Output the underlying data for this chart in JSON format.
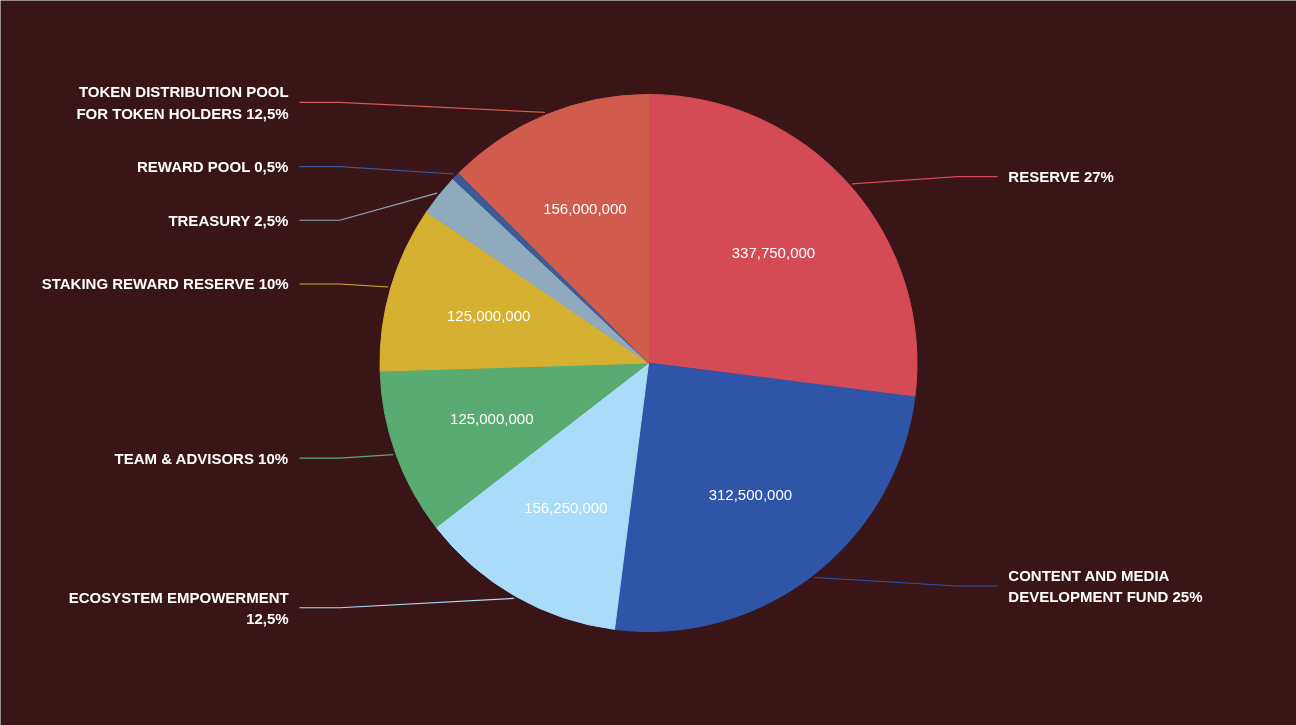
{
  "chart_data": {
    "type": "pie",
    "categories": [
      "RESERVE 27%",
      "CONTENT AND MEDIA DEVELOPMENT FUND 25%",
      "ECOSYSTEM EMPOWERMENT 12,5%",
      "TEAM & ADVISORS 10%",
      "STAKING REWARD RESERVE 10%",
      "TREASURY 2,5%",
      "REWARD POOL 0,5%",
      "TOKEN DISTRIBUTION POOL FOR TOKEN HOLDERS 12,5%"
    ],
    "values": [
      337750000,
      312500000,
      156250000,
      125000000,
      125000000,
      31250000,
      6250000,
      156000000
    ],
    "value_labels": [
      "337,750,000",
      "312,500,000",
      "156,250,000",
      "125,000,000",
      "125,000,000",
      null,
      null,
      "156,000,000"
    ],
    "colors": [
      "#d44a55",
      "#2f55a8",
      "#a8dcf8",
      "#5aab72",
      "#d6b030",
      "#8fa9bd",
      "#3a5a9a",
      "#cf5c4c"
    ]
  }
}
